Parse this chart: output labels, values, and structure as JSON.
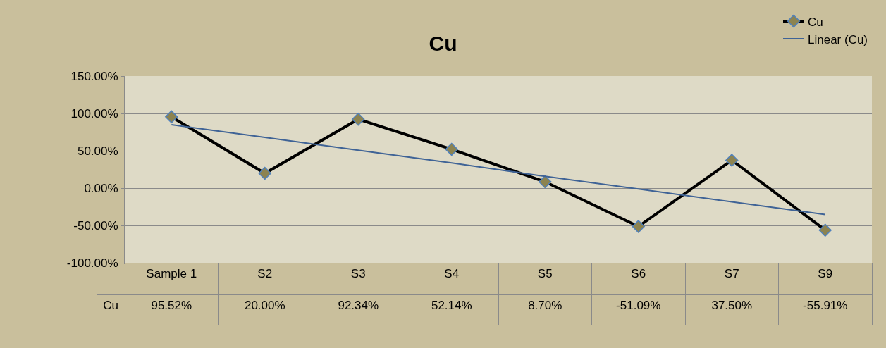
{
  "chart_data": {
    "type": "line",
    "title": "Cu",
    "categories": [
      "Sample 1",
      "S2",
      "S3",
      "S4",
      "S5",
      "S6",
      "S7",
      "S9"
    ],
    "series": [
      {
        "name": "Cu",
        "color": "#000000",
        "values": [
          95.52,
          20.0,
          92.34,
          52.14,
          8.7,
          -51.09,
          37.5,
          -55.91
        ],
        "value_labels": [
          "95.52%",
          "20.00%",
          "92.34%",
          "52.14%",
          "8.70%",
          "-51.09%",
          "37.50%",
          "-55.91%"
        ],
        "marker": "diamond"
      },
      {
        "name": "Linear (Cu)",
        "type": "line",
        "color": "#3F6396",
        "values": [
          85,
          68,
          51,
          34,
          16,
          -1,
          -18,
          -35
        ],
        "marker": "none"
      }
    ],
    "ylim": [
      -100,
      150
    ],
    "yticks": [
      {
        "value": -100,
        "label": "-100.00%"
      },
      {
        "value": -50,
        "label": "-50.00%"
      },
      {
        "value": 0,
        "label": "0.00%"
      },
      {
        "value": 50,
        "label": "50.00%"
      },
      {
        "value": 100,
        "label": "100.00%"
      },
      {
        "value": 150,
        "label": "150.00%"
      }
    ],
    "grid": "y",
    "legend": "top right"
  }
}
